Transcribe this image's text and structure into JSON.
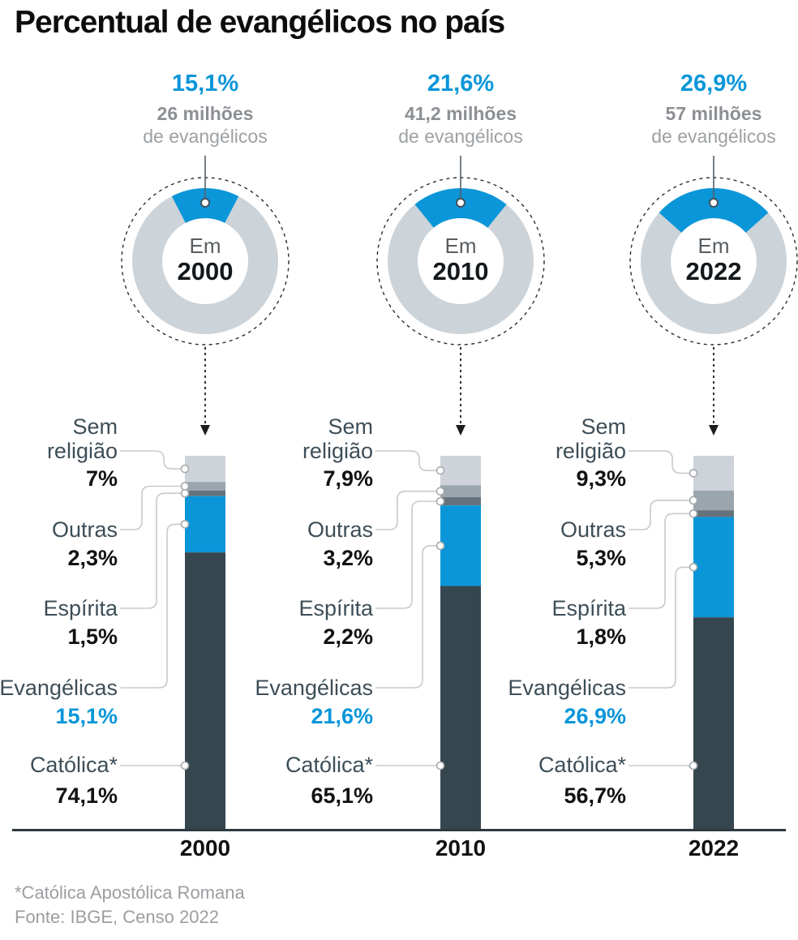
{
  "title": "Percentual de evangélicos no país",
  "footnote": "*Católica Apostólica Romana",
  "source": "Fonte: IBGE, Censo 2022",
  "chart_data": {
    "type": [
      "donut",
      "stacked-bar"
    ],
    "unit": "%",
    "categories": [
      "Sem religião",
      "Outras",
      "Espírita",
      "Evangélicas",
      "Católica*"
    ],
    "years": [
      "2000",
      "2010",
      "2022"
    ],
    "donuts": [
      {
        "year": "2000",
        "center_prefix": "Em",
        "pct": 15.1,
        "pct_label": "15,1%",
        "millions": "26 milhões",
        "sub": "de evangélicos"
      },
      {
        "year": "2010",
        "center_prefix": "Em",
        "pct": 21.6,
        "pct_label": "21,6%",
        "millions": "41,2 milhões",
        "sub": "de evangélicos"
      },
      {
        "year": "2022",
        "center_prefix": "Em",
        "pct": 26.9,
        "pct_label": "26,9%",
        "millions": "57 milhões",
        "sub": "de evangélicos"
      }
    ],
    "series": [
      {
        "year": "2000",
        "values": [
          7,
          2.3,
          1.5,
          15.1,
          74.1
        ],
        "labels": [
          "7%",
          "2,3%",
          "1,5%",
          "15,1%",
          "74,1%"
        ]
      },
      {
        "year": "2010",
        "values": [
          7.9,
          3.2,
          2.2,
          21.6,
          65.1
        ],
        "labels": [
          "7,9%",
          "3,2%",
          "2,2%",
          "21,6%",
          "65,1%"
        ]
      },
      {
        "year": "2022",
        "values": [
          9.3,
          5.3,
          1.8,
          26.9,
          56.7
        ],
        "labels": [
          "9,3%",
          "5,3%",
          "1,8%",
          "26,9%",
          "56,7%"
        ]
      }
    ],
    "highlight_category_index": 3,
    "ylim": [
      0,
      100
    ],
    "colors": {
      "accent_blue": "#0a96d9",
      "segment_colors": [
        "#cdd3d9",
        "#9aa5ae",
        "#66727b",
        "#0a96d9",
        "#35464f"
      ],
      "ring_gray": "#ccd3d9",
      "label_slate": "#3d4e58",
      "axis_dark": "#2d383f",
      "leader_gray": "#c7cacc",
      "muted_gray": "#9b9ea1"
    }
  }
}
